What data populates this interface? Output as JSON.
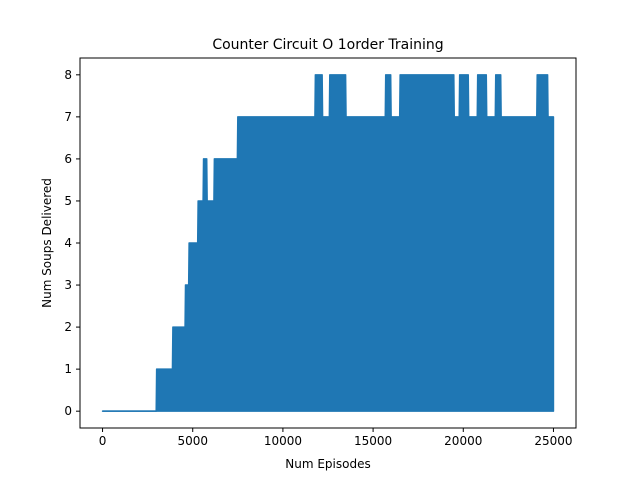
{
  "chart_data": {
    "type": "line",
    "title": "Counter Circuit O 1order Training",
    "xlabel": "Num Episodes",
    "ylabel": "Num Soups Delivered",
    "xlim": [
      -1250,
      26250
    ],
    "ylim": [
      -0.4,
      8.4
    ],
    "xticks": [
      0,
      5000,
      10000,
      15000,
      20000,
      25000
    ],
    "xtick_labels": [
      "0",
      "5000",
      "10000",
      "15000",
      "20000",
      "25000"
    ],
    "yticks": [
      0,
      1,
      2,
      3,
      4,
      5,
      6,
      7,
      8
    ],
    "ytick_labels": [
      "0",
      "1",
      "2",
      "3",
      "4",
      "5",
      "6",
      "7",
      "8"
    ],
    "grid": false,
    "series": [
      {
        "color": "#1f77b4",
        "x_range": [
          0,
          25000
        ],
        "envelope_upper": [
          [
            0,
            0
          ],
          [
            2999,
            0
          ],
          [
            3000,
            1
          ],
          [
            3300,
            1
          ],
          [
            3900,
            2
          ],
          [
            4300,
            2
          ],
          [
            4600,
            3
          ],
          [
            4800,
            4
          ],
          [
            5300,
            5
          ],
          [
            5600,
            6
          ],
          [
            5800,
            5
          ],
          [
            6200,
            6
          ],
          [
            6600,
            6
          ],
          [
            7500,
            7
          ],
          [
            11800,
            8
          ],
          [
            12200,
            7
          ],
          [
            12600,
            8
          ],
          [
            13500,
            7
          ],
          [
            15700,
            8
          ],
          [
            16000,
            7
          ],
          [
            16500,
            8
          ],
          [
            19500,
            7
          ],
          [
            19800,
            8
          ],
          [
            20300,
            7
          ],
          [
            20800,
            8
          ],
          [
            21300,
            7
          ],
          [
            21800,
            8
          ],
          [
            22100,
            7
          ],
          [
            24100,
            8
          ],
          [
            24700,
            7
          ],
          [
            25000,
            7
          ]
        ],
        "envelope_lower": [
          [
            0,
            0
          ],
          [
            7000,
            0
          ],
          [
            25000,
            0
          ]
        ]
      }
    ]
  }
}
